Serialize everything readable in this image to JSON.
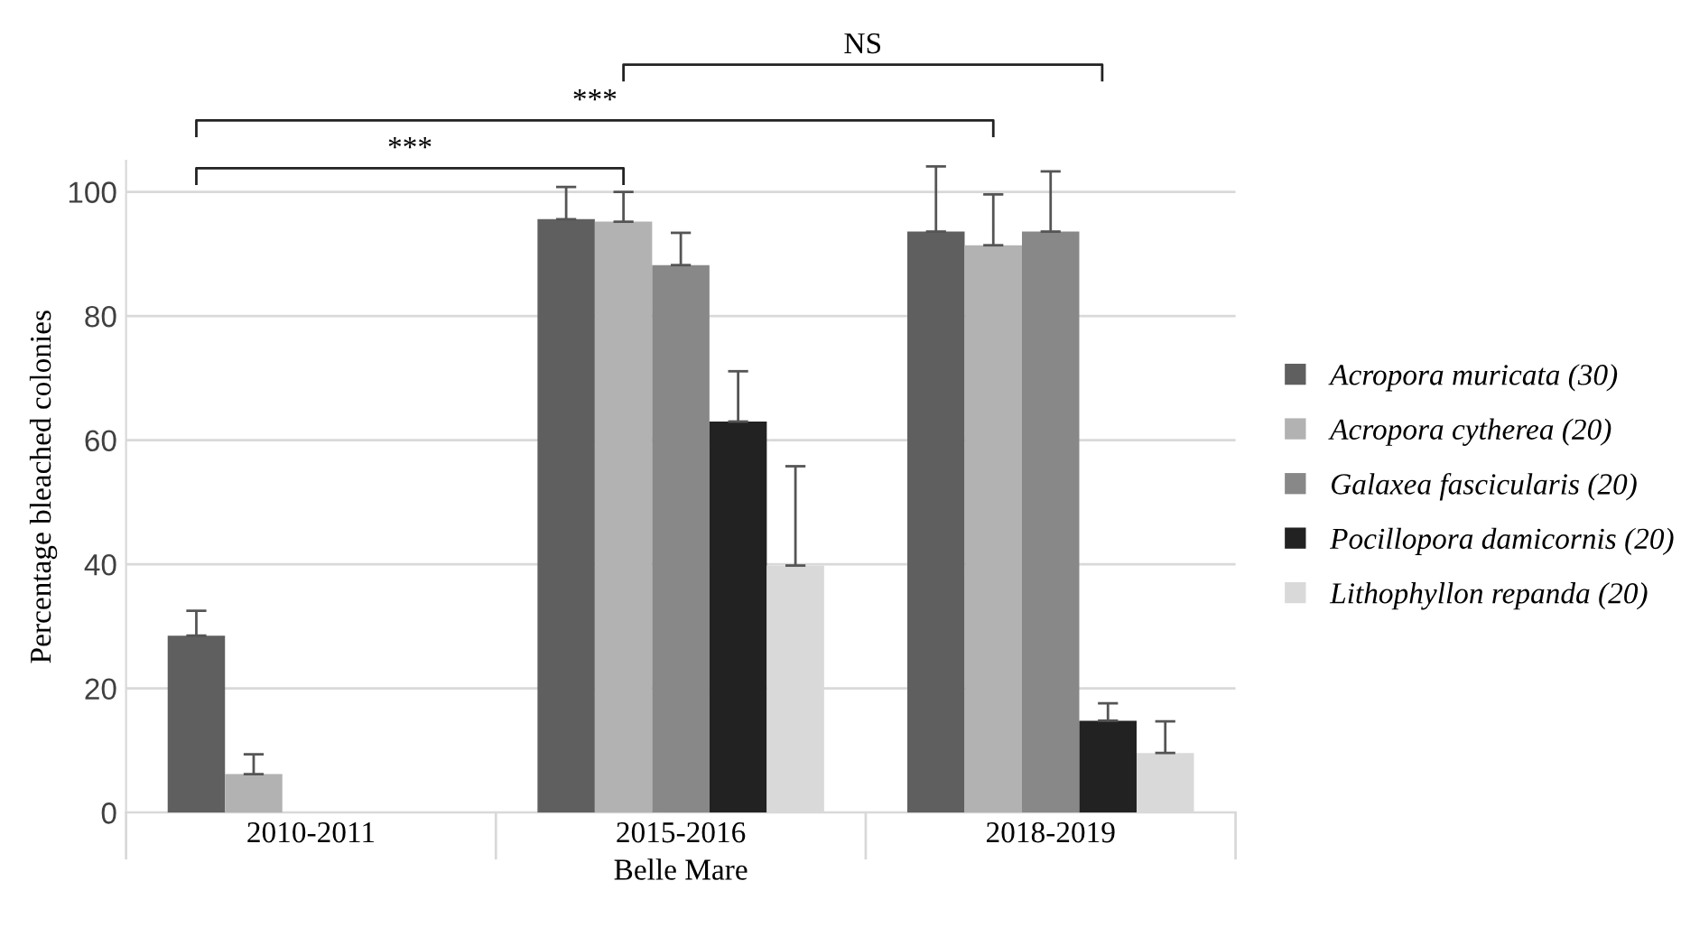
{
  "chart_data": {
    "type": "bar",
    "ylabel": "Percentage bleached colonies",
    "xlabel": "Belle Mare",
    "categories": [
      "2010-2011",
      "2015-2016",
      "2018-2019"
    ],
    "series": [
      {
        "name": "Acropora muricata (30)",
        "color": "#5f5f5f",
        "values": [
          28.5,
          95.6,
          93.6
        ],
        "errors": [
          4.0,
          5.2,
          10.5
        ]
      },
      {
        "name": "Acropora cytherea (20)",
        "color": "#b2b2b2",
        "values": [
          6.2,
          95.2,
          91.4
        ],
        "errors": [
          3.2,
          4.8,
          8.2
        ]
      },
      {
        "name": "Galaxea fascicularis (20)",
        "color": "#888888",
        "values": [
          null,
          88.2,
          93.6
        ],
        "errors": [
          null,
          5.2,
          9.7
        ]
      },
      {
        "name": "Pocillopora damicornis (20)",
        "color": "#222222",
        "values": [
          null,
          63.0,
          14.8
        ],
        "errors": [
          null,
          8.1,
          2.8
        ]
      },
      {
        "name": "Lithophyllon repanda (20)",
        "color": "#d9d9d9",
        "values": [
          null,
          39.8,
          9.6
        ],
        "errors": [
          null,
          16.0,
          5.1
        ]
      }
    ],
    "ylim": [
      0,
      105
    ],
    "yticks": [
      0,
      20,
      40,
      60,
      80,
      100
    ],
    "grid": "y",
    "legend": "right",
    "annotations": [
      "***",
      "***",
      "NS"
    ]
  }
}
